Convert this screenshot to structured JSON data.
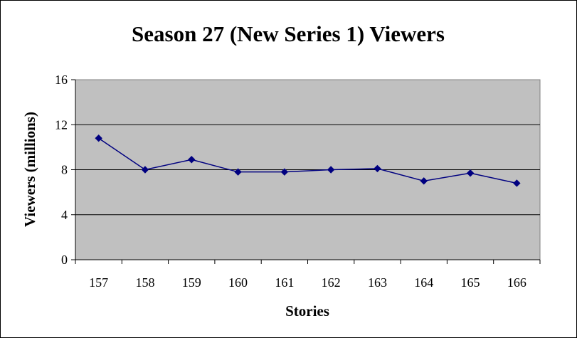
{
  "chart_data": {
    "type": "line",
    "title": "Season 27 (New Series 1) Viewers",
    "xlabel": "Stories",
    "ylabel": "Viewers (millions)",
    "categories": [
      "157",
      "158",
      "159",
      "160",
      "161",
      "162",
      "163",
      "164",
      "165",
      "166"
    ],
    "series": [
      {
        "values": [
          10.8,
          8.0,
          8.9,
          7.8,
          7.8,
          8.0,
          8.1,
          7.0,
          7.7,
          6.8
        ]
      }
    ],
    "ylim": [
      0,
      16
    ],
    "yticks": [
      "0",
      "4",
      "8",
      "12",
      "16"
    ],
    "grid": true,
    "legend": "none",
    "colors": {
      "plot_area": "#c0c0c0",
      "line": "#000080",
      "gridline": "#000000"
    }
  }
}
